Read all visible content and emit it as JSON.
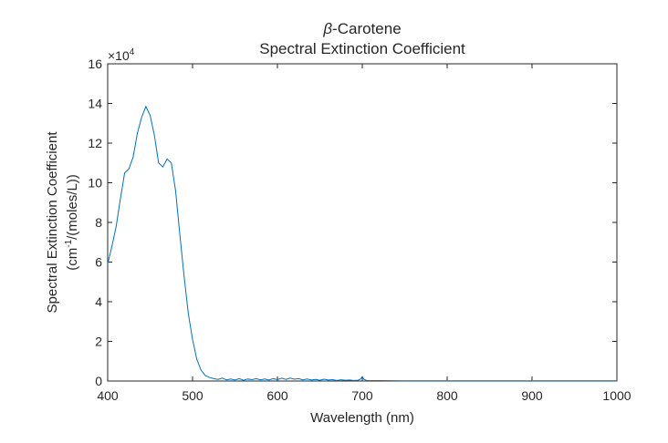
{
  "chart_data": {
    "type": "line",
    "title_symbol": "β",
    "title_line1_rest": "-Carotene",
    "title_line2": "Spectral Extinction Coefficient",
    "xlabel": "Wavelength (nm)",
    "ylabel_line1": "Spectral Extinction Coefficient",
    "ylabel_line2_prefix": "(cm",
    "ylabel_line2_superscript": "-1",
    "ylabel_line2_suffix": "/(moles/L))",
    "y_multiplier_base": "×10",
    "y_multiplier_exponent": "4",
    "xlim": [
      400,
      1000
    ],
    "ylim": [
      0,
      16
    ],
    "x_ticks": [
      400,
      500,
      600,
      700,
      800,
      900,
      1000
    ],
    "y_ticks": [
      0,
      2,
      4,
      6,
      8,
      10,
      12,
      14,
      16
    ],
    "grid": false,
    "line_color": "#0072BD",
    "series": [
      {
        "x": [
          400,
          405,
          410,
          415,
          420,
          425,
          430,
          435,
          440,
          445,
          450,
          455,
          460,
          465,
          470,
          475,
          480,
          485,
          490,
          495,
          500,
          505,
          510,
          515,
          520,
          525,
          530,
          535,
          540,
          545,
          550,
          555,
          560,
          565,
          570,
          575,
          580,
          585,
          590,
          595,
          600,
          605,
          610,
          615,
          620,
          625,
          630,
          635,
          640,
          645,
          650,
          655,
          660,
          665,
          670,
          675,
          680,
          685,
          690,
          695,
          698,
          700,
          702,
          705,
          710,
          720,
          750,
          800,
          850,
          900,
          950,
          1000
        ],
        "values": [
          5.9,
          6.8,
          7.8,
          9.2,
          10.5,
          10.7,
          11.3,
          12.5,
          13.3,
          13.85,
          13.4,
          12.4,
          11.0,
          10.8,
          11.2,
          11.0,
          9.6,
          7.4,
          5.3,
          3.4,
          2.1,
          1.1,
          0.55,
          0.28,
          0.18,
          0.12,
          0.08,
          0.15,
          0.06,
          0.1,
          0.05,
          0.12,
          0.04,
          0.1,
          0.07,
          0.12,
          0.06,
          0.1,
          0.05,
          0.12,
          0.07,
          0.14,
          0.08,
          0.15,
          0.09,
          0.12,
          0.06,
          0.1,
          0.05,
          0.08,
          0.04,
          0.09,
          0.05,
          0.07,
          0.03,
          0.06,
          0.04,
          0.05,
          0.03,
          0.04,
          0.1,
          0.22,
          0.08,
          0.03,
          0.02,
          0.02,
          0.01,
          0.01,
          0.01,
          0.01,
          0.01,
          0.01
        ]
      }
    ]
  }
}
